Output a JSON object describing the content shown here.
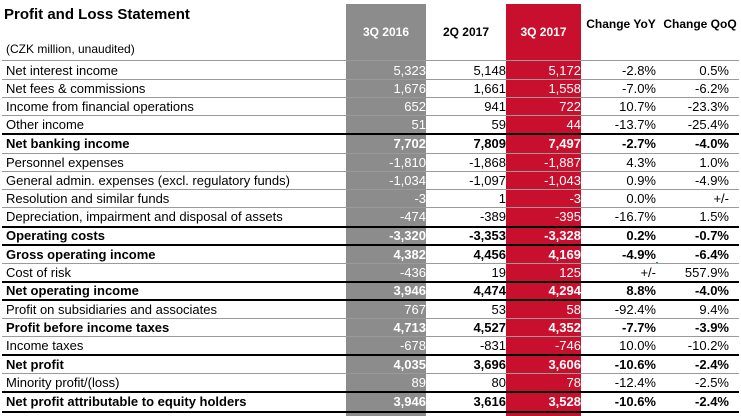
{
  "title": "Profit and Loss Statement",
  "subtitle": "(CZK million, unaudited)",
  "columns": [
    "3Q 2016",
    "2Q 2017",
    "3Q 2017",
    "Change YoY",
    "Change QoQ"
  ],
  "rows": [
    {
      "label": "Net interest income",
      "v": [
        "5,323",
        "5,148",
        "5,172",
        "-2.8%",
        "0.5%"
      ],
      "bold": false
    },
    {
      "label": "Net fees & commissions",
      "v": [
        "1,676",
        "1,661",
        "1,558",
        "-7.0%",
        "-6.2%"
      ],
      "bold": false
    },
    {
      "label": "Income from financial operations",
      "v": [
        "652",
        "941",
        "722",
        "10.7%",
        "-23.3%"
      ],
      "bold": false
    },
    {
      "label": "Other income",
      "v": [
        "51",
        "59",
        "44",
        "-13.7%",
        "-25.4%"
      ],
      "bold": false
    },
    {
      "label": "Net banking income",
      "v": [
        "7,702",
        "7,809",
        "7,497",
        "-2.7%",
        "-4.0%"
      ],
      "bold": true
    },
    {
      "label": "Personnel expenses",
      "v": [
        "-1,810",
        "-1,868",
        "-1,887",
        "4.3%",
        "1.0%"
      ],
      "bold": false
    },
    {
      "label": "General admin. expenses (excl. regulatory funds)",
      "v": [
        "-1,034",
        "-1,097",
        "-1,043",
        "0.9%",
        "-4.9%"
      ],
      "bold": false
    },
    {
      "label": "Resolution and similar funds",
      "v": [
        "-3",
        "1",
        "-3",
        "0.0%",
        "+/-"
      ],
      "bold": false
    },
    {
      "label": "Depreciation, impairment and disposal of assets",
      "v": [
        "-474",
        "-389",
        "-395",
        "-16.7%",
        "1.5%"
      ],
      "bold": false
    },
    {
      "label": "Operating costs",
      "v": [
        "-3,320",
        "-3,353",
        "-3,328",
        "0.2%",
        "-0.7%"
      ],
      "bold": true
    },
    {
      "label": "Gross operating income",
      "v": [
        "4,382",
        "4,456",
        "4,169",
        "-4.9%",
        "-6.4%"
      ],
      "bold": true
    },
    {
      "label": "Cost of risk",
      "v": [
        "-436",
        "19",
        "125",
        "+/-",
        "557.9%"
      ],
      "bold": false
    },
    {
      "label": "Net operating income",
      "v": [
        "3,946",
        "4,474",
        "4,294",
        "8.8%",
        "-4.0%"
      ],
      "bold": true
    },
    {
      "label": "Profit on subsidiaries and associates",
      "v": [
        "767",
        "53",
        "58",
        "-92.4%",
        "9.4%"
      ],
      "bold": false
    },
    {
      "label": "Profit before income taxes",
      "v": [
        "4,713",
        "4,527",
        "4,352",
        "-7.7%",
        "-3.9%"
      ],
      "bold": true
    },
    {
      "label": "Income taxes",
      "v": [
        "-678",
        "-831",
        "-746",
        "10.0%",
        "-10.2%"
      ],
      "bold": false
    },
    {
      "label": "Net profit",
      "v": [
        "4,035",
        "3,696",
        "3,606",
        "-10.6%",
        "-2.4%"
      ],
      "bold": true
    },
    {
      "label": "Minority profit/(loss)",
      "v": [
        "89",
        "80",
        "78",
        "-12.4%",
        "-2.5%"
      ],
      "bold": false
    },
    {
      "label": "Net profit attributable to equity holders",
      "v": [
        "3,946",
        "3,616",
        "3,528",
        "-10.6%",
        "-2.4%"
      ],
      "bold": true
    }
  ],
  "colors": {
    "col_3q2016": "#8c8c8c",
    "col_3q2017": "#c8102e"
  }
}
